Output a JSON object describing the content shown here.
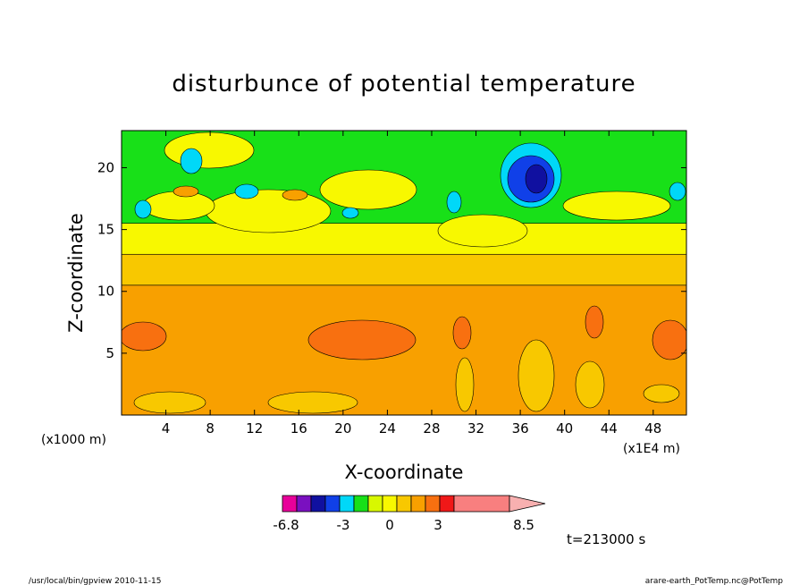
{
  "chart_data": {
    "type": "heatmap",
    "title": "disturbunce of potential temperature",
    "xlabel": "X-coordinate",
    "ylabel": "Z-coordinate",
    "x_unit_left": "(x1000 m)",
    "x_unit_right": "(x1E4 m)",
    "xlim": [
      0,
      51
    ],
    "ylim": [
      0,
      23
    ],
    "x_ticks": [
      4,
      8,
      12,
      16,
      20,
      24,
      28,
      32,
      36,
      40,
      44,
      48
    ],
    "y_ticks": [
      5,
      10,
      15,
      20
    ],
    "colorbar": {
      "tick_labels": [
        "-6.8",
        "-3",
        "0",
        "3",
        "8.5"
      ],
      "tick_values": [
        -6.8,
        -3,
        0,
        3,
        8.5
      ],
      "colors": [
        "#e8009a",
        "#7a10c0",
        "#1010a0",
        "#1040e8",
        "#00d8f8",
        "#18e018",
        "#d8f800",
        "#f8f800",
        "#f8c800",
        "#f8a000",
        "#f87010",
        "#f01818",
        "#f87f7f",
        "#f8b0b0"
      ]
    },
    "layers": [
      {
        "z_range": [
          0,
          10.5
        ],
        "level": 3,
        "color": "#f8a000"
      },
      {
        "z_range": [
          10.5,
          13
        ],
        "level": 2,
        "color": "#f8c800"
      },
      {
        "z_range": [
          13,
          15.5
        ],
        "level": 1,
        "color": "#f8f800"
      },
      {
        "z_range": [
          15.5,
          23
        ],
        "level": 0,
        "color": "#18e018"
      }
    ],
    "time_label": "t=213000 s"
  },
  "footer": {
    "left": "/usr/local/bin/gpview  2010-11-15",
    "right": "arare-earth_PotTemp.nc@PotTemp"
  }
}
